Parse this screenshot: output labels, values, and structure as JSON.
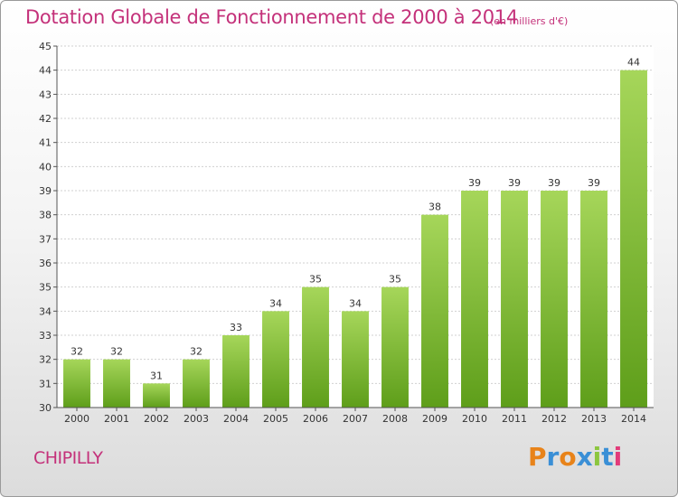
{
  "chart_data": {
    "type": "bar",
    "title": "Dotation Globale de Fonctionnement de 2000 à 2014",
    "subtitle": "(en milliers d'€)",
    "categories": [
      "2000",
      "2001",
      "2002",
      "2003",
      "2004",
      "2005",
      "2006",
      "2007",
      "2008",
      "2009",
      "2010",
      "2011",
      "2012",
      "2013",
      "2014"
    ],
    "values": [
      32,
      32,
      31,
      32,
      33,
      34,
      35,
      34,
      35,
      38,
      39,
      39,
      39,
      39,
      44
    ],
    "ylim": [
      30,
      45
    ],
    "yticks": [
      30,
      31,
      32,
      33,
      34,
      35,
      36,
      37,
      38,
      39,
      40,
      41,
      42,
      43,
      44,
      45
    ],
    "grid": true,
    "bar_color": "#8cc63f",
    "xlabel": "",
    "ylabel": ""
  },
  "footer": {
    "commune": "CHIPILLY",
    "logo_text": "Proxiti",
    "logo_icon": "proxiti-logo"
  },
  "colors": {
    "title": "#c4317a",
    "bar_top": "#a6d65a",
    "bar_bottom": "#5e9e1a"
  }
}
